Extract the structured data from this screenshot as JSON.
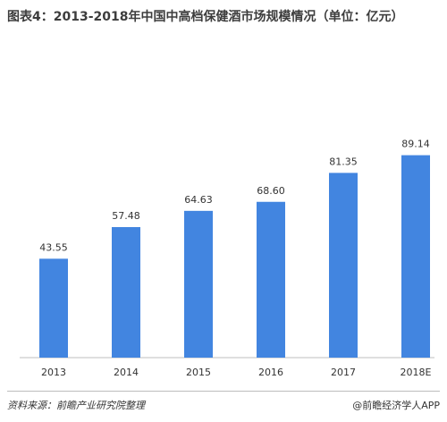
{
  "title": "图表4：2013-2018年中国中高档保健酒市场规模情况（单位：亿元）",
  "source": "资料来源：前瞻产业研究院整理",
  "brand": "@前瞻经济学人APP",
  "colors": {
    "bar": "#4285e0",
    "axis": "#bfbfbf",
    "text": "#333333"
  },
  "chart_data": {
    "type": "bar",
    "title": "图表4：2013-2018年中国中高档保健酒市场规模情况（单位：亿元）",
    "categories": [
      "2013",
      "2014",
      "2015",
      "2016",
      "2017",
      "2018E"
    ],
    "values": [
      43.55,
      57.48,
      64.63,
      68.6,
      81.35,
      89.14
    ],
    "value_labels": [
      "43.55",
      "57.48",
      "64.63",
      "68.60",
      "81.35",
      "89.14"
    ],
    "xlabel": "",
    "ylabel": "",
    "ylim": [
      0,
      100
    ],
    "grid": false,
    "legend": "none"
  }
}
